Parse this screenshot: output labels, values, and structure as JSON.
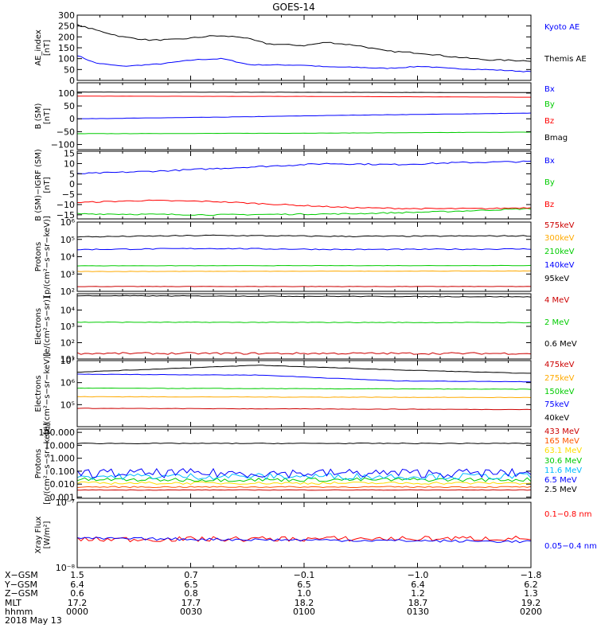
{
  "title": "GOES-14",
  "chart_data": [
    {
      "type": "line",
      "panel": "ae",
      "ylabel": "AE_index\n[nT]",
      "ylim": [
        0,
        300
      ],
      "yticks": [
        {
          "v": 300,
          "label": "300"
        },
        {
          "v": 250,
          "label": "250"
        },
        {
          "v": 200,
          "label": "200"
        },
        {
          "v": 150,
          "label": "150"
        },
        {
          "v": 100,
          "label": "100"
        },
        {
          "v": 50,
          "label": "50"
        },
        {
          "v": 0,
          "label": "0"
        }
      ],
      "series": [
        {
          "name": "Kyoto AE",
          "color": "#0000ff",
          "legend": true,
          "noise": 2,
          "points": [
            [
              0,
              115
            ],
            [
              0.04,
              80
            ],
            [
              0.1,
              65
            ],
            [
              0.18,
              75
            ],
            [
              0.26,
              95
            ],
            [
              0.32,
              100
            ],
            [
              0.38,
              72
            ],
            [
              0.5,
              70
            ],
            [
              0.55,
              62
            ],
            [
              0.62,
              60
            ],
            [
              0.68,
              55
            ],
            [
              0.76,
              65
            ],
            [
              0.82,
              55
            ],
            [
              0.9,
              50
            ],
            [
              1,
              40
            ]
          ]
        },
        {
          "name": "Themis AE",
          "color": "#000000",
          "legend": true,
          "noise": 3,
          "points": [
            [
              0,
              255
            ],
            [
              0.04,
              232
            ],
            [
              0.1,
              200
            ],
            [
              0.16,
              185
            ],
            [
              0.22,
              188
            ],
            [
              0.3,
              205
            ],
            [
              0.36,
              200
            ],
            [
              0.42,
              168
            ],
            [
              0.5,
              160
            ],
            [
              0.55,
              175
            ],
            [
              0.62,
              160
            ],
            [
              0.68,
              135
            ],
            [
              0.76,
              125
            ],
            [
              0.82,
              110
            ],
            [
              0.9,
              95
            ],
            [
              1,
              90
            ]
          ]
        }
      ],
      "legend_font": 10
    },
    {
      "type": "line",
      "panel": "b_sm",
      "ylabel": "B (SM)\n[nT]",
      "ylim": [
        -120,
        140
      ],
      "yticks": [
        {
          "v": 100,
          "label": "100"
        },
        {
          "v": 50,
          "label": "50"
        },
        {
          "v": 0,
          "label": "0"
        },
        {
          "v": -50,
          "label": "−50"
        },
        {
          "v": -100,
          "label": "−100"
        }
      ],
      "series": [
        {
          "name": "Bx",
          "color": "#0000ff",
          "legend": true,
          "noise": 0.5,
          "points": [
            [
              0,
              0
            ],
            [
              0.3,
              6
            ],
            [
              0.6,
              14
            ],
            [
              1,
              22
            ]
          ]
        },
        {
          "name": "By",
          "color": "#00cc00",
          "legend": true,
          "noise": 0.5,
          "points": [
            [
              0,
              -58
            ],
            [
              0.5,
              -56
            ],
            [
              1,
              -52
            ]
          ]
        },
        {
          "name": "Bz",
          "color": "#ff0000",
          "legend": true,
          "noise": 0.3,
          "points": [
            [
              0,
              88
            ],
            [
              0.5,
              87
            ],
            [
              1,
              84
            ]
          ]
        },
        {
          "name": "Bmag",
          "color": "#000000",
          "legend": true,
          "noise": 0.3,
          "points": [
            [
              0,
              104
            ],
            [
              0.5,
              103
            ],
            [
              1,
              102
            ]
          ]
        }
      ],
      "legend_font": 10
    },
    {
      "type": "line",
      "panel": "b_igrf",
      "ylabel": "B (SM)−IGRF (SM)\n[nT]",
      "ylim": [
        -17,
        16
      ],
      "yticks": [
        {
          "v": 15,
          "label": "15"
        },
        {
          "v": 10,
          "label": "10"
        },
        {
          "v": 5,
          "label": "5"
        },
        {
          "v": 0,
          "label": "0"
        },
        {
          "v": -5,
          "label": "−5"
        },
        {
          "v": -10,
          "label": "−10"
        },
        {
          "v": -15,
          "label": "−15"
        }
      ],
      "series": [
        {
          "name": "Bx",
          "color": "#0000ff",
          "legend": true,
          "noise": 0.35,
          "points": [
            [
              0,
              5
            ],
            [
              0.2,
              6.5
            ],
            [
              0.4,
              8.5
            ],
            [
              0.55,
              10
            ],
            [
              0.7,
              9.5
            ],
            [
              0.85,
              10.5
            ],
            [
              1,
              11
            ]
          ]
        },
        {
          "name": "By",
          "color": "#00cc00",
          "legend": true,
          "noise": 0.3,
          "points": [
            [
              0,
              -14.5
            ],
            [
              0.3,
              -15
            ],
            [
              0.6,
              -14.5
            ],
            [
              0.8,
              -13.5
            ],
            [
              1,
              -12
            ]
          ]
        },
        {
          "name": "Bz",
          "color": "#ff0000",
          "legend": true,
          "noise": 0.3,
          "points": [
            [
              0,
              -9
            ],
            [
              0.15,
              -8
            ],
            [
              0.3,
              -8.5
            ],
            [
              0.45,
              -10
            ],
            [
              0.6,
              -11.5
            ],
            [
              0.75,
              -12
            ],
            [
              0.9,
              -12
            ],
            [
              1,
              -11.5
            ]
          ]
        }
      ],
      "legend_font": 10
    },
    {
      "type": "line",
      "panel": "protons_hi",
      "scale": "log",
      "ylabel": "Protons\n[p/(cm²−s−sr−keV)]",
      "ylim": [
        100,
        1000000
      ],
      "yticks": [
        {
          "v": 1000000,
          "label": "10⁶"
        },
        {
          "v": 100000,
          "label": "10⁵"
        },
        {
          "v": 10000,
          "label": "10⁴"
        },
        {
          "v": 1000,
          "label": "10³"
        },
        {
          "v": 100,
          "label": "10²"
        }
      ],
      "series": [
        {
          "name": "575keV",
          "color": "#cc0000",
          "legend": true,
          "noise": 0.01,
          "points": [
            [
              0,
              190
            ],
            [
              1,
              190
            ]
          ]
        },
        {
          "name": "300keV",
          "color": "#ffaa00",
          "legend": true,
          "noise": 0.01,
          "points": [
            [
              0,
              1400
            ],
            [
              1,
              1500
            ]
          ]
        },
        {
          "name": "210keV",
          "color": "#00cc00",
          "legend": true,
          "noise": 0.01,
          "points": [
            [
              0,
              3000
            ],
            [
              1,
              3100
            ]
          ]
        },
        {
          "name": "140keV",
          "color": "#0000ff",
          "legend": true,
          "noise": 0.03,
          "points": [
            [
              0,
              26000
            ],
            [
              0.3,
              30000
            ],
            [
              0.6,
              26000
            ],
            [
              1,
              28000
            ]
          ]
        },
        {
          "name": "95keV",
          "color": "#000000",
          "legend": true,
          "noise": 0.03,
          "points": [
            [
              0,
              140000
            ],
            [
              0.3,
              170000
            ],
            [
              0.6,
              150000
            ],
            [
              1,
              160000
            ]
          ]
        }
      ],
      "legend_font": 10
    },
    {
      "type": "line",
      "panel": "electrons_mev",
      "scale": "log",
      "ylabel": "Electrons\n[e/(cm²−s−sr)]",
      "ylim": [
        10,
        100000
      ],
      "yticks": [
        {
          "v": 10000,
          "label": "10⁴"
        },
        {
          "v": 1000,
          "label": "10³"
        },
        {
          "v": 100,
          "label": "10²"
        },
        {
          "v": 10,
          "label": "10¹"
        }
      ],
      "series": [
        {
          "name": "4 MeV",
          "color": "#cc0000",
          "legend": true,
          "noise": 0.06,
          "points": [
            [
              0,
              22
            ],
            [
              1,
              22
            ]
          ]
        },
        {
          "name": "2 MeV",
          "color": "#00cc00",
          "legend": true,
          "noise": 0.02,
          "points": [
            [
              0,
              1800
            ],
            [
              1,
              1700
            ]
          ]
        },
        {
          "name": "0.6 MeV",
          "color": "#000000",
          "legend": true,
          "noise": 0.02,
          "points": [
            [
              0,
              75000
            ],
            [
              0.5,
              70000
            ],
            [
              1,
              65000
            ]
          ]
        }
      ],
      "legend_font": 10
    },
    {
      "type": "line",
      "panel": "electrons_kev",
      "scale": "log",
      "ylabel": "Electrons\n[e/(cm²−s−sr−keV)]",
      "ylim": [
        10000,
        10000000
      ],
      "yticks": [
        {
          "v": 10000000,
          "label": "10⁷"
        },
        {
          "v": 1000000,
          "label": "10⁶"
        },
        {
          "v": 100000,
          "label": "10⁵"
        }
      ],
      "series": [
        {
          "name": "475keV",
          "color": "#cc0000",
          "legend": true,
          "noise": 0.01,
          "points": [
            [
              0,
              68000
            ],
            [
              1,
              60000
            ]
          ]
        },
        {
          "name": "275keV",
          "color": "#ffaa00",
          "legend": true,
          "noise": 0.01,
          "points": [
            [
              0,
              230000
            ],
            [
              1,
              210000
            ]
          ]
        },
        {
          "name": "150keV",
          "color": "#00cc00",
          "legend": true,
          "noise": 0.01,
          "points": [
            [
              0,
              560000
            ],
            [
              1,
              500000
            ]
          ]
        },
        {
          "name": "75keV",
          "color": "#0000ff",
          "legend": true,
          "noise": 0.01,
          "points": [
            [
              0,
              2400000
            ],
            [
              0.4,
              2200000
            ],
            [
              0.7,
              1200000
            ],
            [
              1,
              1100000
            ]
          ]
        },
        {
          "name": "40keV",
          "color": "#000000",
          "legend": true,
          "noise": 0.01,
          "points": [
            [
              0,
              3000000
            ],
            [
              0.4,
              6200000
            ],
            [
              0.7,
              3800000
            ],
            [
              1,
              2600000
            ]
          ]
        }
      ],
      "legend_font": 10
    },
    {
      "type": "line",
      "panel": "protons_mev",
      "scale": "log",
      "ylabel": "Protons\n[p/(cm²−s−sr−keV)]",
      "ylim": [
        0.0008,
        180
      ],
      "yticks": [
        {
          "v": 100,
          "label": "100.000"
        },
        {
          "v": 10,
          "label": "10.000"
        },
        {
          "v": 1,
          "label": "1.000"
        },
        {
          "v": 0.1,
          "label": "0.100"
        },
        {
          "v": 0.01,
          "label": "0.010"
        },
        {
          "v": 0.001,
          "label": "0.001"
        }
      ],
      "series": [
        {
          "name": "433 MeV",
          "color": "#cc0000",
          "legend": true,
          "noise": 0.02,
          "points": [
            [
              0,
              0.0035
            ],
            [
              1,
              0.0035
            ]
          ]
        },
        {
          "name": "165 MeV",
          "color": "#ff5500",
          "legend": true,
          "noise": 0.05,
          "points": [
            [
              0,
              0.006
            ],
            [
              1,
              0.006
            ]
          ]
        },
        {
          "name": "63.1 MeV",
          "color": "#ffdd00",
          "legend": true,
          "noise": 0.1,
          "points": [
            [
              0,
              0.012
            ],
            [
              1,
              0.012
            ]
          ]
        },
        {
          "name": "30.6 MeV",
          "color": "#00cc00",
          "legend": true,
          "noise": 0.15,
          "points": [
            [
              0,
              0.022
            ],
            [
              1,
              0.022
            ]
          ]
        },
        {
          "name": "11.6 MeV",
          "color": "#00bbff",
          "legend": true,
          "noise": 0.25,
          "points": [
            [
              0,
              0.04
            ],
            [
              1,
              0.04
            ]
          ]
        },
        {
          "name": "6.5 MeV",
          "color": "#0000ff",
          "legend": true,
          "noise": 0.35,
          "points": [
            [
              0,
              0.07
            ],
            [
              1,
              0.07
            ]
          ]
        },
        {
          "name": "2.5 MeV",
          "color": "#000000",
          "legend": true,
          "noise": 0.03,
          "points": [
            [
              0,
              14
            ],
            [
              1,
              14
            ]
          ]
        }
      ],
      "legend_font": 10
    },
    {
      "type": "line",
      "panel": "xray",
      "scale": "log",
      "ylabel": "Xray Flux\n[W/m²]",
      "ylim": [
        1e-08,
        1e-07
      ],
      "yticks": [
        {
          "v": 1e-07,
          "label": "10⁻⁷"
        },
        {
          "v": 1e-08,
          "label": "10⁻⁸"
        }
      ],
      "series": [
        {
          "name": "0.1−0.8 nm",
          "color": "#ff0000",
          "legend": true,
          "noise": 0.04,
          "points": [
            [
              0,
              2.7e-08
            ],
            [
              1,
              2.8e-08
            ]
          ]
        },
        {
          "name": "0.05−0.4 nm",
          "color": "#0000ff",
          "legend": true,
          "noise": 0.02,
          "points": [
            [
              0,
              2.8e-08
            ],
            [
              1,
              2.5e-08
            ]
          ]
        }
      ],
      "legend_font": 10
    }
  ],
  "x_axis": {
    "row_labels": [
      "X−GSM",
      "Y−GSM",
      "Z−GSM",
      "MLT",
      "hhmm",
      "2018 May 13"
    ],
    "columns": [
      [
        "1.5",
        "6.4",
        "0.6",
        "17.2",
        "0000"
      ],
      [
        "0.7",
        "6.5",
        "0.8",
        "17.7",
        "0030"
      ],
      [
        "−0.1",
        "6.5",
        "1.0",
        "18.2",
        "0100"
      ],
      [
        "−1.0",
        "6.4",
        "1.2",
        "18.7",
        "0130"
      ],
      [
        "−1.8",
        "6.2",
        "1.3",
        "19.2",
        "0200"
      ]
    ]
  }
}
